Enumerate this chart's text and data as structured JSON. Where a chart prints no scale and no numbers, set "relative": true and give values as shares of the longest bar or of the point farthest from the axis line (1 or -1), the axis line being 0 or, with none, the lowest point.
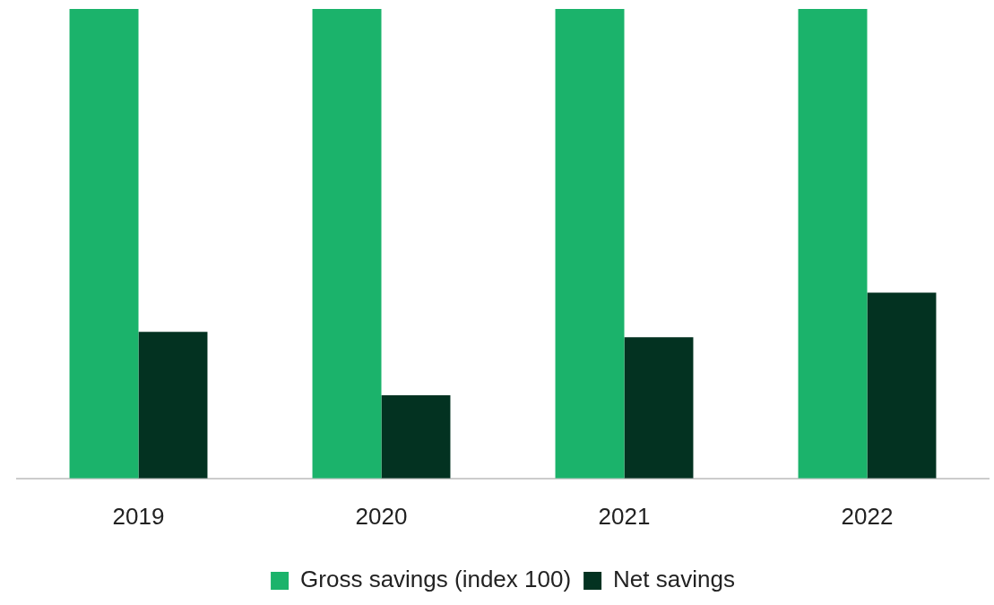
{
  "chart_data": {
    "type": "bar",
    "relative": true,
    "categories": [
      "2019",
      "2020",
      "2021",
      "2022"
    ],
    "series": [
      {
        "name": "Gross savings (index 100)",
        "color": "#1bb36b",
        "values": [
          1,
          1,
          1,
          1
        ]
      },
      {
        "name": "Net savings",
        "color": "#033221",
        "values": [
          0.312,
          0.177,
          0.301,
          0.396
        ]
      }
    ],
    "grid": false,
    "legend": "bottom"
  }
}
